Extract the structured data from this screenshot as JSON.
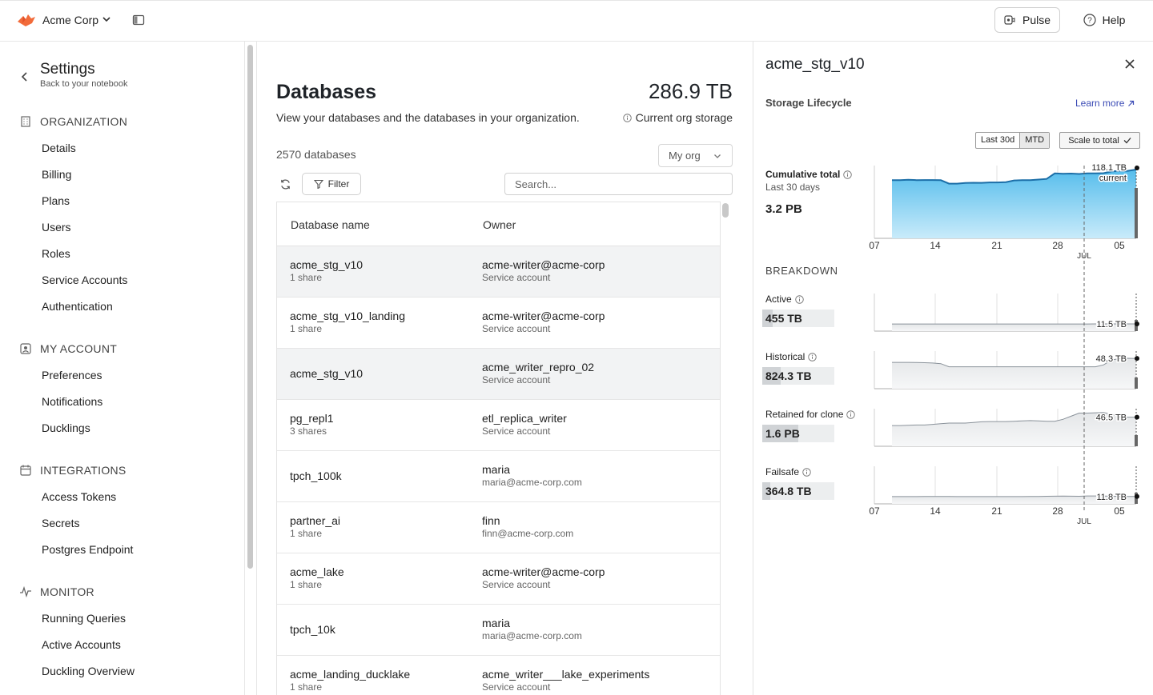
{
  "topbar": {
    "org_name": "Acme Corp",
    "pulse_label": "Pulse",
    "help_label": "Help"
  },
  "sidebar": {
    "title": "Settings",
    "subtitle": "Back to your notebook",
    "sections": [
      {
        "title": "ORGANIZATION",
        "icon": "building-icon",
        "items": [
          "Details",
          "Billing",
          "Plans",
          "Users",
          "Roles",
          "Service Accounts",
          "Authentication"
        ]
      },
      {
        "title": "MY ACCOUNT",
        "icon": "user-card-icon",
        "items": [
          "Preferences",
          "Notifications",
          "Ducklings"
        ]
      },
      {
        "title": "INTEGRATIONS",
        "icon": "calendar-icon",
        "items": [
          "Access Tokens",
          "Secrets",
          "Postgres Endpoint"
        ]
      },
      {
        "title": "MONITOR",
        "icon": "pulse-line-icon",
        "items": [
          "Running Queries",
          "Active Accounts",
          "Duckling Overview"
        ]
      }
    ]
  },
  "main": {
    "title": "Databases",
    "description": "View your databases and the databases in your organization.",
    "storage_total": "286.9 TB",
    "storage_caption": "Current org storage",
    "db_count": "2570 databases",
    "scope_value": "My org",
    "filter_label": "Filter",
    "search_placeholder": "Search...",
    "columns": [
      "Database name",
      "Owner"
    ],
    "rows": [
      {
        "name": "acme_stg_v10",
        "shares": "1 share",
        "owner": "acme-writer@acme-corp",
        "owner_sub": "Service account",
        "selected": true
      },
      {
        "name": "acme_stg_v10_landing",
        "shares": "1 share",
        "owner": "acme-writer@acme-corp",
        "owner_sub": "Service account",
        "selected": false
      },
      {
        "name": "acme_stg_v10",
        "shares": "",
        "owner": "acme_writer_repro_02",
        "owner_sub": "Service account",
        "selected": true
      },
      {
        "name": "pg_repl1",
        "shares": "3 shares",
        "owner": "etl_replica_writer",
        "owner_sub": "Service account",
        "selected": false
      },
      {
        "name": "tpch_100k",
        "shares": "",
        "owner": "maria",
        "owner_sub": "maria@acme-corp.com",
        "selected": false
      },
      {
        "name": "partner_ai",
        "shares": "1 share",
        "owner": "finn",
        "owner_sub": "finn@acme-corp.com",
        "selected": false
      },
      {
        "name": "acme_lake",
        "shares": "1 share",
        "owner": "acme-writer@acme-corp",
        "owner_sub": "Service account",
        "selected": false
      },
      {
        "name": "tpch_10k",
        "shares": "",
        "owner": "maria",
        "owner_sub": "maria@acme-corp.com",
        "selected": false
      },
      {
        "name": "acme_landing_ducklake",
        "shares": "1 share",
        "owner": "acme_writer___lake_experiments",
        "owner_sub": "Service account",
        "selected": false
      }
    ]
  },
  "panel": {
    "title": "acme_stg_v10",
    "lifecycle_title": "Storage Lifecycle",
    "learn_more": "Learn more",
    "range_options": [
      "Last 30d",
      "MTD"
    ],
    "range_selected": "MTD",
    "scale_label": "Scale to total",
    "cumulative_label": "Cumulative total",
    "cumulative_sub": "Last 30 days",
    "cumulative_value": "3.2 PB",
    "breakdown_title": "BREAKDOWN",
    "breakdown": [
      {
        "label": "Active",
        "value": "455 TB",
        "share": 0.14
      },
      {
        "label": "Historical",
        "value": "824.3 TB",
        "share": 0.26
      },
      {
        "label": "Retained for clone",
        "value": "1.6 PB",
        "share": 0.5
      },
      {
        "label": "Failsafe",
        "value": "364.8 TB",
        "share": 0.11
      }
    ]
  },
  "chart_data": [
    {
      "type": "area",
      "name": "cumulative",
      "x_ticks": [
        "07",
        "14",
        "21",
        "28",
        "05"
      ],
      "x_month_label": "JUL",
      "end_label": "118.1 TB",
      "end_sublabel": "current",
      "values": [
        100,
        100,
        100.5,
        100,
        100.2,
        100.2,
        99.8,
        94,
        94,
        95,
        95.5,
        95.3,
        96,
        96,
        96.5,
        99.5,
        99.8,
        100,
        101,
        102,
        111.5,
        110.8,
        111.2,
        110.6,
        111.5,
        111.5,
        112,
        115,
        115.5,
        116,
        118.1
      ]
    },
    {
      "type": "area",
      "name": "active",
      "end_label": "11.5 TB",
      "values": [
        11.4,
        11.4,
        11.4,
        11.4,
        11.4,
        11.4,
        11.4,
        11.4,
        11.4,
        11.4,
        11.4,
        11.4,
        11.4,
        11.4,
        11.4,
        11.4,
        11.4,
        11.4,
        11.4,
        11.4,
        11.4,
        11.4,
        11.4,
        11.4,
        11.4,
        11.5,
        11.5,
        11.5,
        11.5,
        11.5,
        11.5
      ]
    },
    {
      "type": "area",
      "name": "historical",
      "end_label": "48.3 TB",
      "values": [
        42,
        42,
        42,
        41.8,
        41.5,
        41,
        40,
        35,
        35,
        35,
        35,
        35,
        35,
        35,
        35,
        35,
        35,
        35,
        35,
        35,
        35,
        35,
        35,
        35,
        35,
        35,
        38,
        46,
        48,
        48.5,
        48.3
      ]
    },
    {
      "type": "area",
      "name": "retained_for_clone",
      "end_label": "46.5 TB",
      "values": [
        33,
        33,
        33.5,
        34,
        34,
        35,
        36,
        37,
        37,
        37,
        38,
        39,
        39.5,
        39.5,
        39.5,
        40,
        40.5,
        41,
        40.5,
        40,
        40,
        43,
        48,
        53,
        53,
        53.5,
        54,
        51,
        47,
        46.5,
        46.5
      ]
    },
    {
      "type": "area",
      "name": "failsafe",
      "end_label": "11.8 TB",
      "values": [
        11.6,
        11.6,
        11.6,
        11.6,
        11.7,
        11.7,
        11.7,
        11.7,
        11.6,
        11.6,
        11.6,
        11.6,
        11.6,
        11.6,
        11.6,
        11.6,
        11.6,
        11.7,
        11.8,
        12.1,
        12.3,
        12.5,
        12.3,
        12.1,
        12.6,
        12.6,
        12.4,
        12.2,
        12,
        11.8,
        11.8
      ]
    }
  ]
}
